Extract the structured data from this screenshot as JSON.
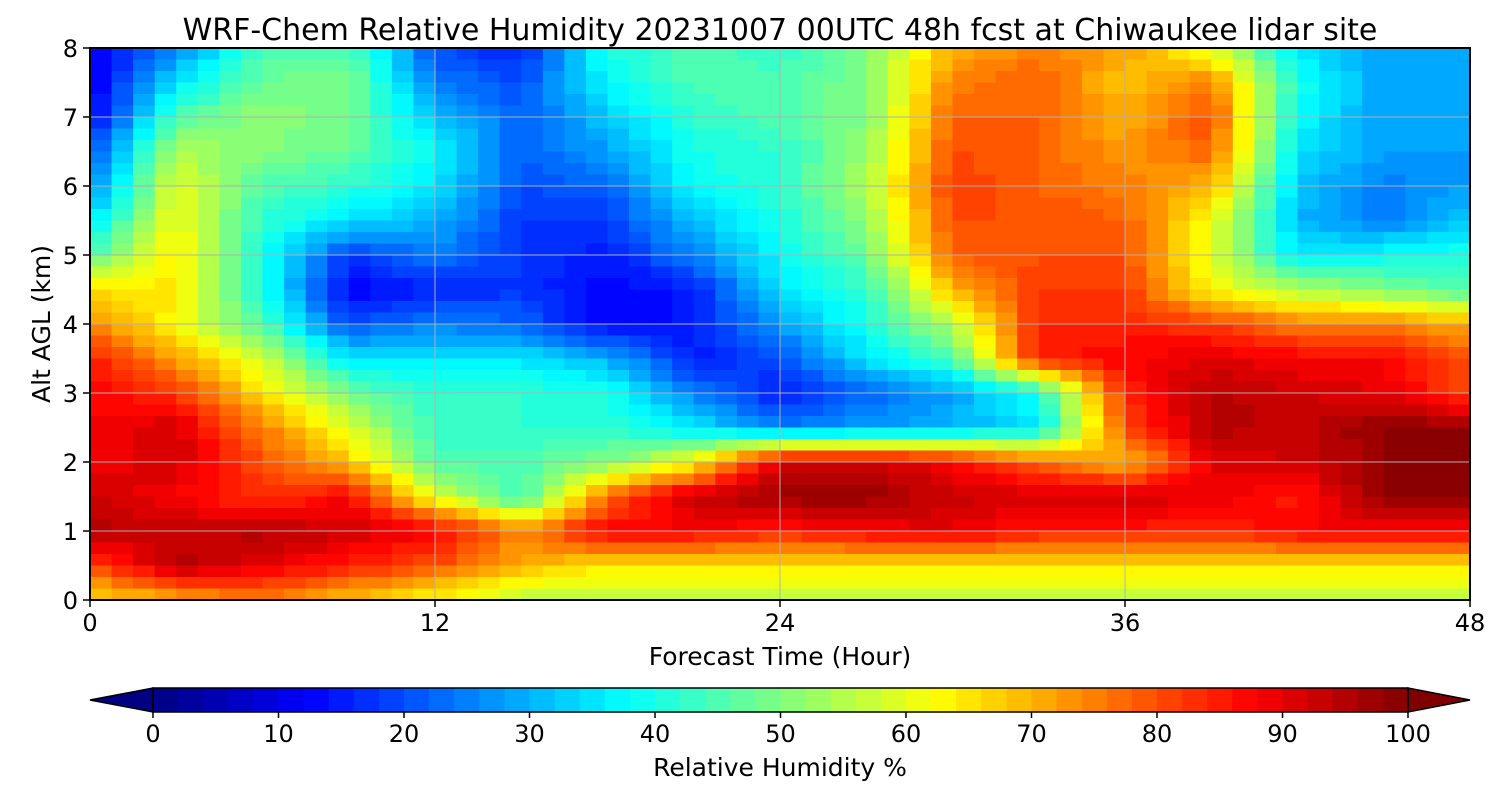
{
  "chart_data": {
    "type": "heatmap",
    "title": "WRF-Chem Relative Humidity 20231007 00UTC 48h fcst at Chiwaukee lidar site",
    "xlabel": "Forecast Time (Hour)",
    "ylabel": "Alt AGL (km)",
    "xlim": [
      0,
      48
    ],
    "ylim": [
      0,
      8
    ],
    "xticks": [
      "0",
      "12",
      "24",
      "36",
      "48"
    ],
    "yticks": [
      "0",
      "1",
      "2",
      "3",
      "4",
      "5",
      "6",
      "7",
      "8"
    ],
    "grid": true,
    "colormap": "jet",
    "x_hours": [
      0,
      3,
      6,
      9,
      12,
      15,
      18,
      21,
      24,
      27,
      30,
      33,
      36,
      39,
      42,
      45,
      48
    ],
    "y_km": [
      8.0,
      7.5,
      7.0,
      6.5,
      6.0,
      5.5,
      5.0,
      4.5,
      4.0,
      3.5,
      3.0,
      2.5,
      2.0,
      1.5,
      1.0,
      0.5,
      0.0
    ],
    "values": [
      [
        10,
        25,
        45,
        45,
        20,
        15,
        40,
        45,
        42,
        50,
        70,
        75,
        72,
        60,
        35,
        28,
        28
      ],
      [
        10,
        35,
        48,
        50,
        25,
        20,
        38,
        45,
        45,
        50,
        75,
        78,
        68,
        75,
        40,
        28,
        28
      ],
      [
        12,
        45,
        52,
        48,
        32,
        22,
        32,
        42,
        45,
        50,
        78,
        78,
        70,
        80,
        38,
        28,
        28
      ],
      [
        20,
        55,
        50,
        48,
        38,
        22,
        28,
        40,
        42,
        52,
        80,
        78,
        72,
        78,
        35,
        28,
        28
      ],
      [
        25,
        60,
        45,
        42,
        35,
        20,
        22,
        38,
        42,
        55,
        82,
        78,
        75,
        70,
        32,
        25,
        28
      ],
      [
        35,
        62,
        42,
        35,
        30,
        18,
        18,
        32,
        40,
        52,
        80,
        80,
        78,
        62,
        30,
        25,
        32
      ],
      [
        45,
        65,
        40,
        18,
        25,
        18,
        15,
        25,
        38,
        48,
        78,
        80,
        80,
        60,
        35,
        38,
        40
      ],
      [
        65,
        65,
        40,
        12,
        15,
        18,
        12,
        15,
        35,
        42,
        70,
        82,
        82,
        62,
        55,
        50,
        45
      ],
      [
        75,
        62,
        45,
        20,
        25,
        22,
        12,
        15,
        28,
        40,
        55,
        84,
        84,
        82,
        75,
        75,
        70
      ],
      [
        85,
        72,
        58,
        35,
        35,
        35,
        30,
        15,
        20,
        35,
        45,
        85,
        88,
        90,
        88,
        88,
        80
      ],
      [
        88,
        82,
        65,
        48,
        42,
        42,
        40,
        25,
        15,
        22,
        28,
        40,
        84,
        95,
        92,
        90,
        80
      ],
      [
        88,
        92,
        75,
        60,
        42,
        42,
        42,
        35,
        25,
        28,
        30,
        35,
        80,
        95,
        93,
        98,
        98
      ],
      [
        88,
        92,
        80,
        68,
        45,
        45,
        50,
        62,
        92,
        92,
        88,
        78,
        68,
        90,
        92,
        98,
        98
      ],
      [
        92,
        88,
        82,
        88,
        60,
        42,
        78,
        93,
        98,
        98,
        93,
        92,
        93,
        90,
        85,
        98,
        98
      ],
      [
        95,
        93,
        95,
        92,
        88,
        75,
        88,
        88,
        85,
        88,
        90,
        85,
        85,
        83,
        88,
        88,
        88
      ],
      [
        80,
        95,
        90,
        85,
        80,
        70,
        65,
        65,
        65,
        65,
        65,
        65,
        65,
        65,
        65,
        65,
        65
      ],
      [
        65,
        70,
        75,
        68,
        62,
        55,
        55,
        55,
        55,
        55,
        55,
        55,
        55,
        55,
        55,
        55,
        55
      ]
    ],
    "colorbar": {
      "label": "Relative Humidity %",
      "range": [
        0,
        100
      ],
      "extend": "both",
      "ticks": [
        "0",
        "10",
        "20",
        "30",
        "40",
        "50",
        "60",
        "70",
        "80",
        "90",
        "100"
      ]
    }
  }
}
